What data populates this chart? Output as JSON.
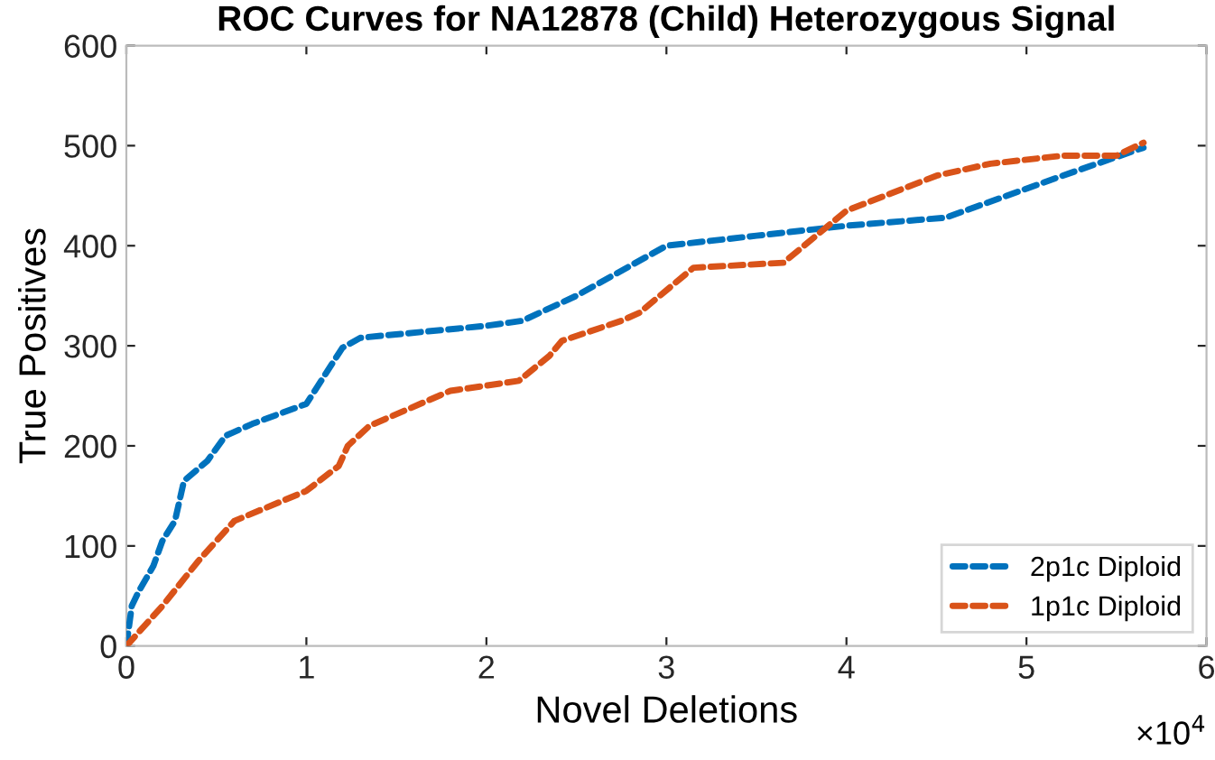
{
  "chart_data": {
    "type": "line",
    "title": "ROC Curves for NA12878 (Child) Heterozygous Signal",
    "xlabel": "Novel Deletions",
    "ylabel": "True Positives",
    "annotations": [
      "×10$^{4}$"
    ],
    "series": [
      {
        "name": "2p1c Diploid",
        "color": "#0072bd",
        "x": [
          0,
          0.03,
          0.07,
          0.15,
          0.2,
          0.27,
          0.32,
          0.45,
          0.55,
          0.7,
          1.0,
          1.1,
          1.2,
          1.3,
          2.0,
          2.2,
          2.5,
          3.0,
          3.5,
          4.0,
          4.55,
          5.2,
          5.65
        ],
        "values": [
          0,
          40,
          55,
          80,
          105,
          125,
          165,
          185,
          210,
          222,
          242,
          270,
          298,
          308,
          320,
          325,
          350,
          400,
          410,
          420,
          428,
          470,
          498
        ]
      },
      {
        "name": "1p1c Diploid",
        "color": "#d95319",
        "x": [
          0,
          0.2,
          0.4,
          0.6,
          1.0,
          1.18,
          1.23,
          1.35,
          1.8,
          2.18,
          2.35,
          2.42,
          2.75,
          2.85,
          3.15,
          3.65,
          4.0,
          4.5,
          4.8,
          5.2,
          5.5,
          5.65
        ],
        "values": [
          0,
          40,
          85,
          125,
          155,
          180,
          200,
          220,
          255,
          265,
          290,
          305,
          325,
          333,
          378,
          383,
          435,
          470,
          482,
          490,
          490,
          503
        ]
      }
    ],
    "xlim": [
      0,
      6
    ],
    "xticks": [
      0,
      1,
      2,
      3,
      4,
      5,
      6
    ],
    "ylim": [
      0,
      600
    ],
    "yticks": [
      0,
      100,
      200,
      300,
      400,
      500,
      600
    ],
    "grid": false,
    "legend": "bottom right",
    "marker": "none",
    "line_style": "dashed"
  }
}
